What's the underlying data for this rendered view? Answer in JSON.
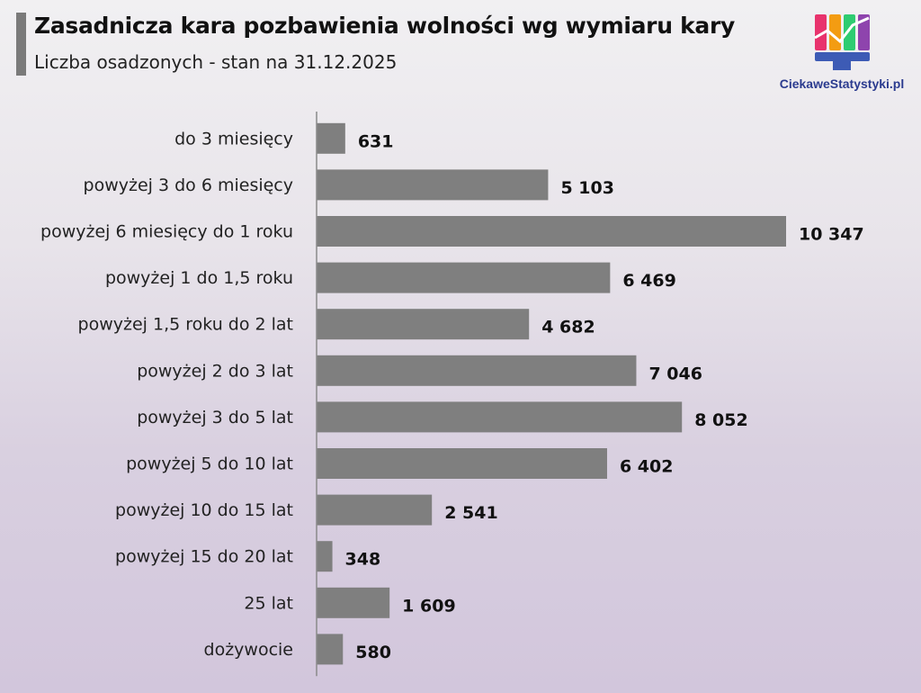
{
  "header": {
    "title": "Zasadnicza kara pozbawienia wolności wg wymiaru kary",
    "subtitle": "Liczba osadzonych - stan na 31.12.2025"
  },
  "logo": {
    "text": "CiekaweStatystyki.pl",
    "colors": [
      "#e8336d",
      "#f39c12",
      "#2ecc71",
      "#8e44ad",
      "#3d5bb5"
    ]
  },
  "chart_data": {
    "type": "bar",
    "orientation": "horizontal",
    "categories": [
      "do 3 miesięcy",
      "powyżej 3 do 6 miesięcy",
      "powyżej 6 miesięcy do 1 roku",
      "powyżej 1 do 1,5 roku",
      "powyżej 1,5 roku do 2 lat",
      "powyżej 2 do 3 lat",
      "powyżej 3 do 5 lat",
      "powyżej 5 do 10 lat",
      "powyżej 10 do 15 lat",
      "powyżej 15 do 20 lat",
      "25 lat",
      "dożywocie"
    ],
    "values": [
      631,
      5103,
      10347,
      6469,
      4682,
      7046,
      8052,
      6402,
      2541,
      348,
      1609,
      580
    ],
    "value_labels": [
      "631",
      "5 103",
      "10 347",
      "6 469",
      "4 682",
      "7 046",
      "8 052",
      "6 402",
      "2 541",
      "348",
      "1 609",
      "580"
    ],
    "bar_color": "#7f7f7f",
    "xlim": [
      0,
      10347
    ],
    "grid": false,
    "legend": "none"
  }
}
